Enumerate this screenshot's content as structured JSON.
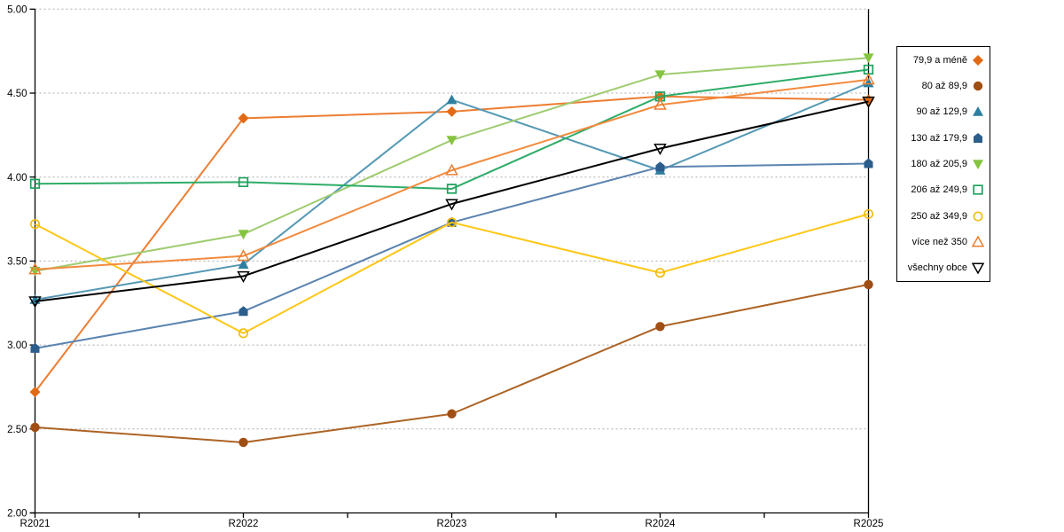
{
  "chart_data": {
    "type": "line",
    "title": "",
    "xlabel": "",
    "ylabel": "",
    "grid": "horizontal-dashed",
    "legend_position": "right",
    "categories": [
      "R2021",
      "R2022",
      "R2023",
      "R2024",
      "R2025"
    ],
    "y_axis": {
      "min": 2.0,
      "max": 5.0,
      "step": 0.5,
      "tick_labels": [
        "5.00",
        "4.50",
        "4.00",
        "3.50",
        "3.00",
        "2.50",
        "2.00"
      ]
    },
    "series": [
      {
        "name": "79,9 a méně",
        "marker": "diamond",
        "fill": "filled",
        "marker_color": "#E26A15",
        "line_color": "#ED7D31",
        "values": [
          2.72,
          4.35,
          4.39,
          4.48,
          4.46
        ]
      },
      {
        "name": "80 až 89,9",
        "marker": "circle",
        "fill": "filled",
        "marker_color": "#A04E14",
        "line_color": "#AC6325",
        "values": [
          2.51,
          2.42,
          2.59,
          3.11,
          3.36
        ]
      },
      {
        "name": "90 až 129,9",
        "marker": "triangle-up",
        "fill": "filled",
        "marker_color": "#2E7F9F",
        "line_color": "#5598B4",
        "values": [
          3.27,
          3.48,
          4.46,
          4.04,
          4.56
        ]
      },
      {
        "name": "130 až 179,9",
        "marker": "pentagon",
        "fill": "filled",
        "marker_color": "#2B5E8C",
        "line_color": "#5A83B0",
        "values": [
          2.98,
          3.2,
          3.73,
          4.06,
          4.08
        ]
      },
      {
        "name": "180 až 205,9",
        "marker": "triangle-down",
        "fill": "filled",
        "marker_color": "#86C440",
        "line_color": "#9FCC71",
        "values": [
          3.44,
          3.66,
          4.22,
          4.61,
          4.71
        ]
      },
      {
        "name": "206 až 249,9",
        "marker": "square",
        "fill": "open",
        "marker_color": "#1CA15B",
        "line_color": "#2EAC68",
        "values": [
          3.96,
          3.97,
          3.93,
          4.48,
          4.64
        ]
      },
      {
        "name": "250 až 349,9",
        "marker": "circle",
        "fill": "open",
        "marker_color": "#EFBE13",
        "line_color": "#FFC717",
        "values": [
          3.72,
          3.07,
          3.73,
          3.43,
          3.78
        ]
      },
      {
        "name": "více než 350",
        "marker": "triangle-up",
        "fill": "open",
        "marker_color": "#ED7D31",
        "line_color": "#F28A3D",
        "values": [
          3.45,
          3.53,
          4.04,
          4.43,
          4.58
        ]
      },
      {
        "name": "všechny obce",
        "marker": "triangle-down",
        "fill": "open",
        "marker_color": "#000000",
        "line_color": "#000000",
        "values": [
          3.26,
          3.41,
          3.84,
          4.17,
          4.45
        ]
      }
    ],
    "colors": {
      "gridline": "#ABABAB",
      "axis": "#000000",
      "background": "#FFFFFF"
    }
  }
}
